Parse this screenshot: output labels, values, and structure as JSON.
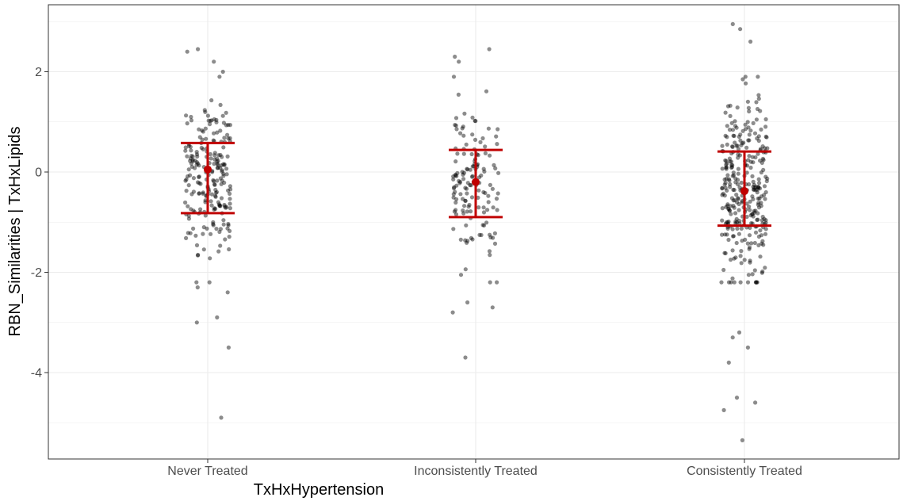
{
  "chart_data": {
    "type": "scatter",
    "subtype": "jittered strip plot with mean and SD error bars",
    "title": "",
    "xlabel": "TxHxHypertension",
    "ylabel": "RBN_Similarities | TxHxLipids",
    "categories": [
      "Never Treated",
      "Inconsistently Treated",
      "Consistently Treated"
    ],
    "ylim": [
      -5.5,
      3.4
    ],
    "yticks": [
      -4,
      -2,
      0,
      2
    ],
    "ytick_labels": [
      "-4",
      "-2",
      "0",
      "2"
    ],
    "grid": true,
    "legend": "none",
    "summary": [
      {
        "category": "Never Treated",
        "mean": 0.05,
        "lower": -0.82,
        "upper": 0.58
      },
      {
        "category": "Inconsistently Treated",
        "mean": -0.2,
        "lower": -0.9,
        "upper": 0.44
      },
      {
        "category": "Consistently Treated",
        "mean": -0.38,
        "lower": -1.07,
        "upper": 0.41
      }
    ],
    "points": [
      {
        "category": "Never Treated",
        "n": 230,
        "mean": -0.1,
        "sd": 0.85,
        "min": -4.9,
        "max": 2.45,
        "outliers": [
          -4.9,
          -3.5,
          -3.0,
          -2.9,
          -2.4,
          -2.3,
          2.45,
          2.4,
          2.2,
          2.0
        ]
      },
      {
        "category": "Inconsistently Treated",
        "n": 150,
        "mean": -0.2,
        "sd": 0.75,
        "min": -3.7,
        "max": 2.45,
        "outliers": [
          -3.7,
          -2.8,
          -2.7,
          -2.6,
          -2.2,
          2.45,
          2.3,
          2.2,
          1.9
        ]
      },
      {
        "category": "Consistently Treated",
        "n": 330,
        "mean": -0.35,
        "sd": 0.9,
        "min": -5.35,
        "max": 2.95,
        "outliers": [
          -5.35,
          -4.75,
          -4.6,
          -4.5,
          -3.8,
          -3.5,
          -3.3,
          -3.2,
          2.95,
          2.85,
          2.6,
          1.85
        ]
      }
    ],
    "colors": {
      "points": "#000000",
      "point_opacity": 0.45,
      "summary": "#c00000",
      "grid": "#ebebeb",
      "panel_border": "#333333"
    }
  }
}
